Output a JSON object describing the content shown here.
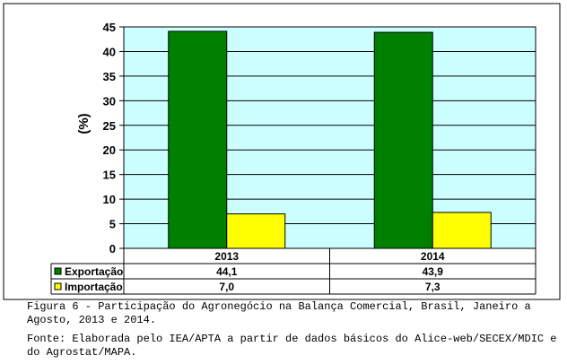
{
  "chart_data": {
    "type": "bar",
    "categories": [
      "2013",
      "2014"
    ],
    "series": [
      {
        "name": "Exportação",
        "values": [
          44.1,
          43.9
        ],
        "value_labels": [
          "44,1",
          "43,9"
        ],
        "color": "#008000"
      },
      {
        "name": "Importação",
        "values": [
          7.0,
          7.3
        ],
        "value_labels": [
          "7,0",
          "7,3"
        ],
        "color": "#ffff00"
      }
    ],
    "ylabel": "(%)",
    "ylim": [
      0,
      45
    ],
    "yticks": [
      0,
      5,
      10,
      15,
      20,
      25,
      30,
      35,
      40,
      45
    ],
    "grid": true,
    "plot_background": "#ccffff",
    "legend": "data-table"
  },
  "caption": {
    "figure": "Figura 6 - Participação do Agronegócio na Balança Comercial, Brasil, Janeiro a Agosto, 2013 e 2014.",
    "source": "Fonte: Elaborada pelo IEA/APTA a partir de dados básicos do Alice-web/SECEX/MDIC e do Agrostat/MAPA."
  }
}
